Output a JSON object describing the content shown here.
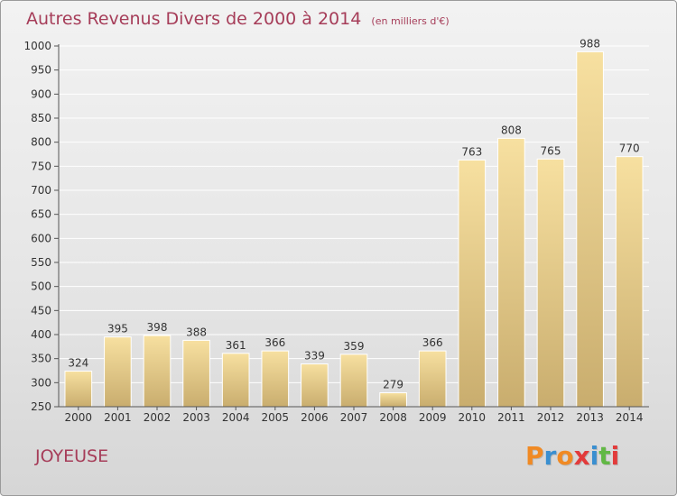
{
  "chart_data": {
    "type": "bar",
    "title": "Autres Revenus Divers de 2000 à 2014",
    "subtitle": "(en milliers d'€)",
    "categories": [
      "2000",
      "2001",
      "2002",
      "2003",
      "2004",
      "2005",
      "2006",
      "2007",
      "2008",
      "2009",
      "2010",
      "2011",
      "2012",
      "2013",
      "2014"
    ],
    "values": [
      324,
      395,
      398,
      388,
      361,
      366,
      339,
      359,
      279,
      366,
      763,
      808,
      765,
      988,
      770
    ],
    "ylim": [
      250,
      1000
    ],
    "yticks": [
      250,
      300,
      350,
      400,
      450,
      500,
      550,
      600,
      650,
      700,
      750,
      800,
      850,
      900,
      950,
      1000
    ],
    "grid": true,
    "bar_color_light": "#f7e0a0",
    "bar_color_dark": "#c9ad6e",
    "text_color": "#a63d59"
  },
  "footer": {
    "commune": "JOYEUSE"
  },
  "logo": {
    "letters": [
      "P",
      "r",
      "o",
      "x",
      "i",
      "t",
      "i"
    ],
    "colors": [
      "#f08a24",
      "#3a8fd0",
      "#f08a24",
      "#e23b3b",
      "#3a8fd0",
      "#62b845",
      "#e23b3b"
    ]
  }
}
